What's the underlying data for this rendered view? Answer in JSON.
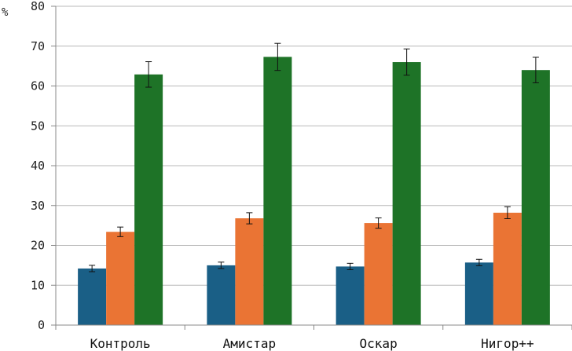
{
  "chart_data": {
    "type": "bar",
    "title": "",
    "xlabel": "",
    "ylabel": "%",
    "ylim": [
      0,
      80
    ],
    "yticks": [
      0,
      10,
      20,
      30,
      40,
      50,
      60,
      70,
      80
    ],
    "grid": true,
    "legend": "none",
    "categories": [
      "Контроль",
      "Амистар",
      "Оскар",
      "Нигор++"
    ],
    "series": [
      {
        "color": "#1a5f86",
        "values": [
          14.2,
          15.0,
          14.7,
          15.7
        ],
        "errors": [
          0.8,
          0.8,
          0.8,
          0.8
        ]
      },
      {
        "color": "#ea7434",
        "values": [
          23.4,
          26.8,
          25.6,
          28.2
        ],
        "errors": [
          1.2,
          1.4,
          1.3,
          1.5
        ]
      },
      {
        "color": "#1e7327",
        "values": [
          62.9,
          67.3,
          66.0,
          64.0
        ],
        "errors": [
          3.2,
          3.4,
          3.3,
          3.2
        ]
      }
    ]
  }
}
